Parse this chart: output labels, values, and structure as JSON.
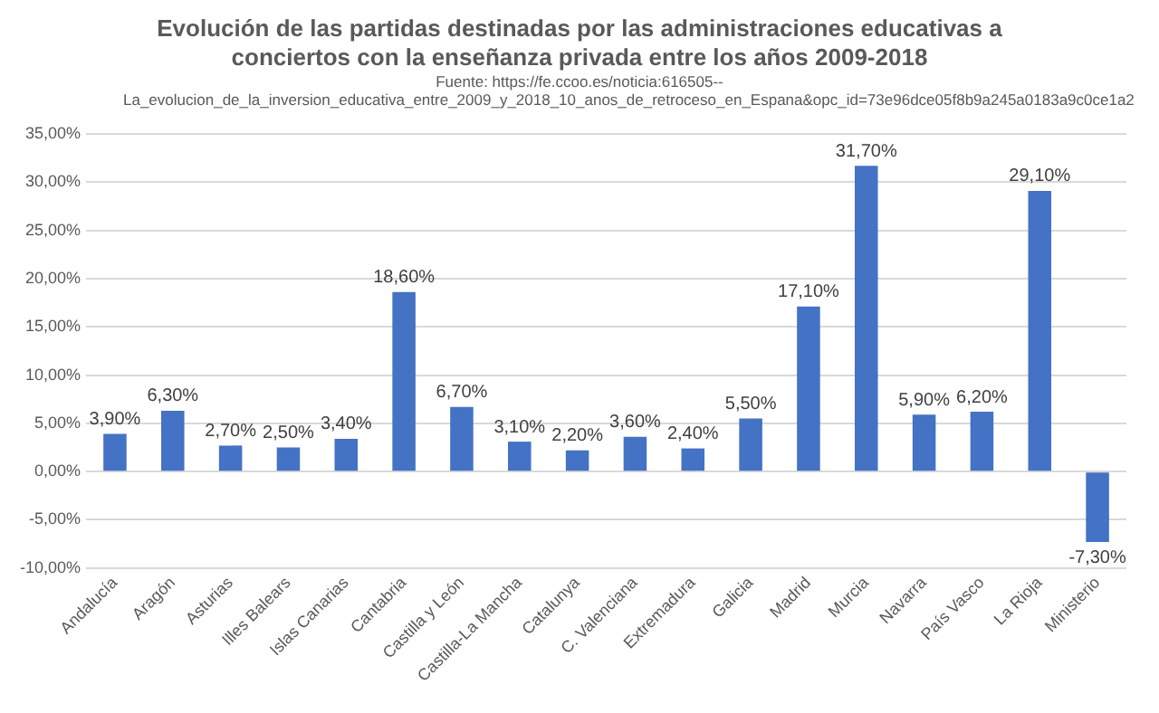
{
  "chart_data": {
    "type": "bar",
    "title": "Evolución de las partidas destinadas por las administraciones educativas a conciertos con la enseñanza privada entre los años 2009-2018",
    "annotations": [
      "Fuente: https://fe.ccoo.es/noticia:616505--",
      "La_evolucion_de_la_inversion_educativa_entre_2009_y_2018_10_anos_de_retroceso_en_Espana&opc_id=73e96dce05f8b9a245a0183a9c0ce1a2"
    ],
    "categories": [
      "Andalucía",
      "Aragón",
      "Asturias",
      "Illes Balears",
      "Islas Canarias",
      "Cantabria",
      "Castilla y León",
      "Castilla-La Mancha",
      "Catalunya",
      "C. Valenciana",
      "Extremadura",
      "Galicia",
      "Madrid",
      "Murcia",
      "Navarra",
      "País Vasco",
      "La Rioja",
      "Ministerio"
    ],
    "values": [
      3.9,
      6.3,
      2.7,
      2.5,
      3.4,
      18.6,
      6.7,
      3.1,
      2.2,
      3.6,
      2.4,
      5.5,
      17.1,
      31.7,
      5.9,
      6.2,
      29.1,
      -7.3
    ],
    "value_labels": [
      "3,90%",
      "6,30%",
      "2,70%",
      "2,50%",
      "3,40%",
      "18,60%",
      "6,70%",
      "3,10%",
      "2,20%",
      "3,60%",
      "2,40%",
      "5,50%",
      "17,10%",
      "31,70%",
      "5,90%",
      "6,20%",
      "29,10%",
      "-7,30%"
    ],
    "color": "#4472c4",
    "ylim": [
      -10,
      35
    ],
    "yticks": [
      {
        "value": -10,
        "label": "-10,00%"
      },
      {
        "value": -5,
        "label": "-5,00%"
      },
      {
        "value": 0,
        "label": "0,00%"
      },
      {
        "value": 5,
        "label": "5,00%"
      },
      {
        "value": 10,
        "label": "10,00%"
      },
      {
        "value": 15,
        "label": "15,00%"
      },
      {
        "value": 20,
        "label": "20,00%"
      },
      {
        "value": 25,
        "label": "25,00%"
      },
      {
        "value": 30,
        "label": "30,00%"
      },
      {
        "value": 35,
        "label": "35,00%"
      }
    ],
    "grid": "y"
  }
}
